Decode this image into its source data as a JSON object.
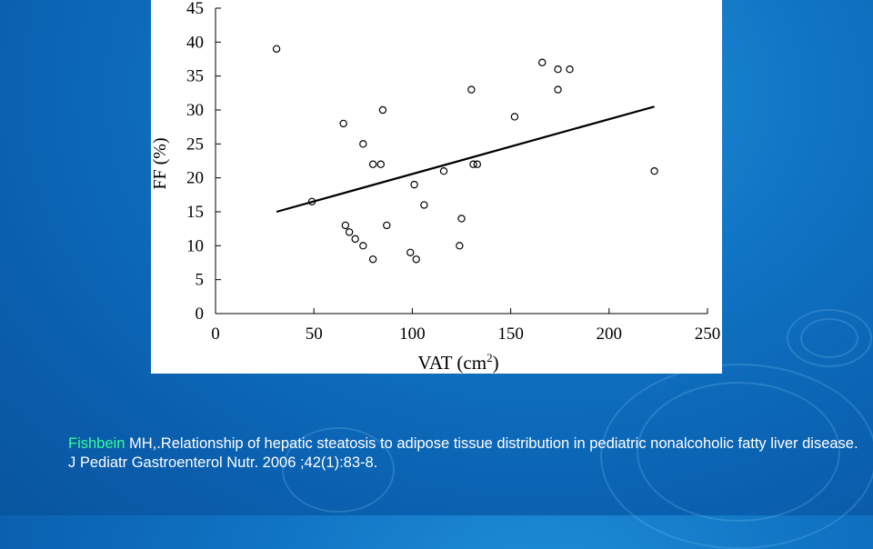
{
  "chart_data": {
    "type": "scatter",
    "xlabel": "VAT (cm",
    "xlabel_sup": "2",
    "xlabel_end": ")",
    "ylabel": "FF (%)",
    "xlim": [
      0,
      250
    ],
    "ylim": [
      0,
      45
    ],
    "x_ticks": [
      "0",
      "50",
      "100",
      "150",
      "200",
      "250"
    ],
    "y_ticks": [
      "0",
      "5",
      "10",
      "15",
      "20",
      "25",
      "30",
      "35",
      "40",
      "45"
    ],
    "points": [
      {
        "x": 31,
        "y": 39
      },
      {
        "x": 49,
        "y": 16.5
      },
      {
        "x": 65,
        "y": 28
      },
      {
        "x": 66,
        "y": 13
      },
      {
        "x": 68,
        "y": 12
      },
      {
        "x": 71,
        "y": 11
      },
      {
        "x": 75,
        "y": 25
      },
      {
        "x": 75,
        "y": 10
      },
      {
        "x": 80,
        "y": 22
      },
      {
        "x": 80,
        "y": 8
      },
      {
        "x": 84,
        "y": 22
      },
      {
        "x": 85,
        "y": 30
      },
      {
        "x": 87,
        "y": 13
      },
      {
        "x": 99,
        "y": 9
      },
      {
        "x": 101,
        "y": 19
      },
      {
        "x": 102,
        "y": 8
      },
      {
        "x": 106,
        "y": 16
      },
      {
        "x": 116,
        "y": 21
      },
      {
        "x": 124,
        "y": 10
      },
      {
        "x": 125,
        "y": 14
      },
      {
        "x": 130,
        "y": 33
      },
      {
        "x": 131,
        "y": 22
      },
      {
        "x": 133,
        "y": 22
      },
      {
        "x": 152,
        "y": 29
      },
      {
        "x": 166,
        "y": 37
      },
      {
        "x": 174,
        "y": 36
      },
      {
        "x": 174,
        "y": 33
      },
      {
        "x": 180,
        "y": 36
      },
      {
        "x": 223,
        "y": 21
      }
    ],
    "trendline": {
      "x": [
        31,
        223
      ],
      "y": [
        15,
        30.5
      ]
    },
    "grid": false,
    "legend": "none",
    "marker": "open-circle"
  },
  "citation": {
    "author": "Fishbein",
    "text": " MH,.Relationship of hepatic steatosis to adipose tissue distribution in pediatric nonalcoholic fatty liver disease. J Pediatr Gastroenterol Nutr. 2006 ;42(1):83-8."
  },
  "colors": {
    "background": "#0f72c2",
    "author_highlight": "#33ff99",
    "citation_text": "#ffffff"
  }
}
